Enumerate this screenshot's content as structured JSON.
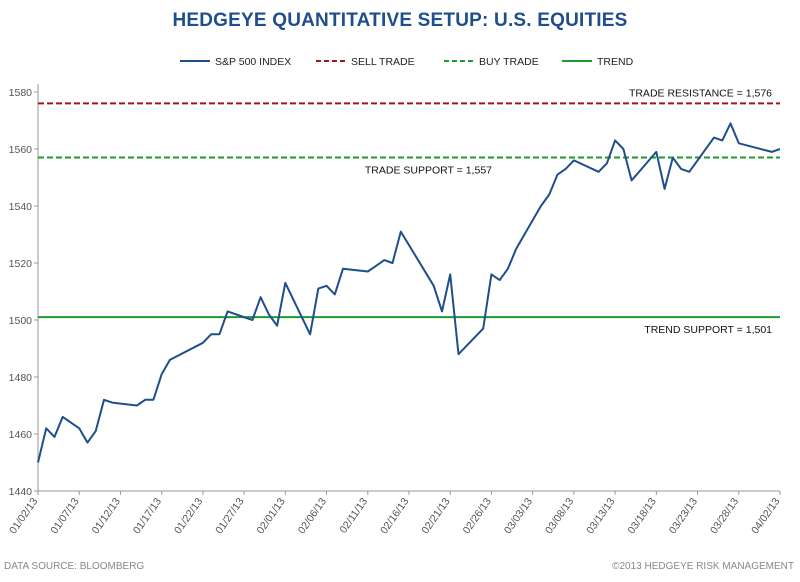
{
  "page": {
    "title": "HEDGEYE QUANTITATIVE SETUP: U.S. EQUITIES",
    "source_note": "DATA SOURCE: BLOOMBERG",
    "copyright": "©2013 HEDGEYE RISK MANAGEMENT"
  },
  "legend": [
    {
      "label": "S&P 500 INDEX",
      "color": "#1f4e8c",
      "dashed": false
    },
    {
      "label": "SELL TRADE",
      "color": "#a31616",
      "dashed": true
    },
    {
      "label": "BUY TRADE",
      "color": "#1e9a2e",
      "dashed": true
    },
    {
      "label": "TREND",
      "color": "#1e9a2e",
      "dashed": false
    }
  ],
  "chart_data": {
    "type": "line",
    "title": "HEDGEYE QUANTITATIVE SETUP: U.S. EQUITIES",
    "xlabel": "",
    "ylabel": "",
    "ylim": [
      1440,
      1580
    ],
    "yticks": [
      1440,
      1460,
      1480,
      1500,
      1520,
      1540,
      1560,
      1580
    ],
    "x_tick_labels": [
      "01/02/13",
      "01/07/13",
      "01/12/13",
      "01/17/13",
      "01/22/13",
      "01/27/13",
      "02/01/13",
      "02/06/13",
      "02/11/13",
      "02/16/13",
      "02/21/13",
      "02/26/13",
      "03/03/13",
      "03/08/13",
      "03/13/13",
      "03/18/13",
      "03/23/13",
      "03/28/13",
      "04/02/13"
    ],
    "x_start": "2013-01-02",
    "x_end": "2013-04-02",
    "grid": false,
    "legend_position": "top",
    "series": [
      {
        "name": "S&P 500 INDEX",
        "color": "#1f4e8c",
        "x": [
          "2013-01-02",
          "2013-01-03",
          "2013-01-04",
          "2013-01-05",
          "2013-01-07",
          "2013-01-08",
          "2013-01-09",
          "2013-01-10",
          "2013-01-11",
          "2013-01-14",
          "2013-01-15",
          "2013-01-16",
          "2013-01-17",
          "2013-01-18",
          "2013-01-22",
          "2013-01-23",
          "2013-01-24",
          "2013-01-25",
          "2013-01-28",
          "2013-01-29",
          "2013-01-30",
          "2013-01-31",
          "2013-02-01",
          "2013-02-04",
          "2013-02-05",
          "2013-02-06",
          "2013-02-07",
          "2013-02-08",
          "2013-02-11",
          "2013-02-12",
          "2013-02-13",
          "2013-02-14",
          "2013-02-15",
          "2013-02-19",
          "2013-02-20",
          "2013-02-21",
          "2013-02-22",
          "2013-02-25",
          "2013-02-26",
          "2013-02-27",
          "2013-02-28",
          "2013-03-01",
          "2013-03-04",
          "2013-03-05",
          "2013-03-06",
          "2013-03-07",
          "2013-03-08",
          "2013-03-11",
          "2013-03-12",
          "2013-03-13",
          "2013-03-14",
          "2013-03-15",
          "2013-03-18",
          "2013-03-19",
          "2013-03-20",
          "2013-03-21",
          "2013-03-22",
          "2013-03-25",
          "2013-03-26",
          "2013-03-27",
          "2013-03-28",
          "2013-04-01",
          "2013-04-02"
        ],
        "values": [
          1450,
          1462,
          1459,
          1466,
          1462,
          1457,
          1461,
          1472,
          1471,
          1470,
          1472,
          1472,
          1481,
          1486,
          1492,
          1495,
          1495,
          1503,
          1500,
          1508,
          1502,
          1498,
          1513,
          1495,
          1511,
          1512,
          1509,
          1518,
          1517,
          1519,
          1521,
          1520,
          1531,
          1512,
          1503,
          1516,
          1488,
          1497,
          1516,
          1514,
          1518,
          1525,
          1540,
          1544,
          1551,
          1553,
          1556,
          1552,
          1555,
          1563,
          1560,
          1549,
          1559,
          1546,
          1557,
          1553,
          1552,
          1564,
          1563,
          1569,
          1562,
          1559,
          1560
        ]
      },
      {
        "name": "SELL TRADE",
        "color": "#a31616",
        "values": [
          1576,
          1576
        ],
        "label": "TRADE RESISTANCE = 1,576"
      },
      {
        "name": "BUY TRADE",
        "color": "#1e9a2e",
        "values": [
          1557,
          1557
        ],
        "label": "TRADE SUPPORT = 1,557"
      },
      {
        "name": "TREND",
        "color": "#1e9a2e",
        "values": [
          1501,
          1501
        ],
        "label": "TREND SUPPORT = 1,501"
      }
    ]
  }
}
